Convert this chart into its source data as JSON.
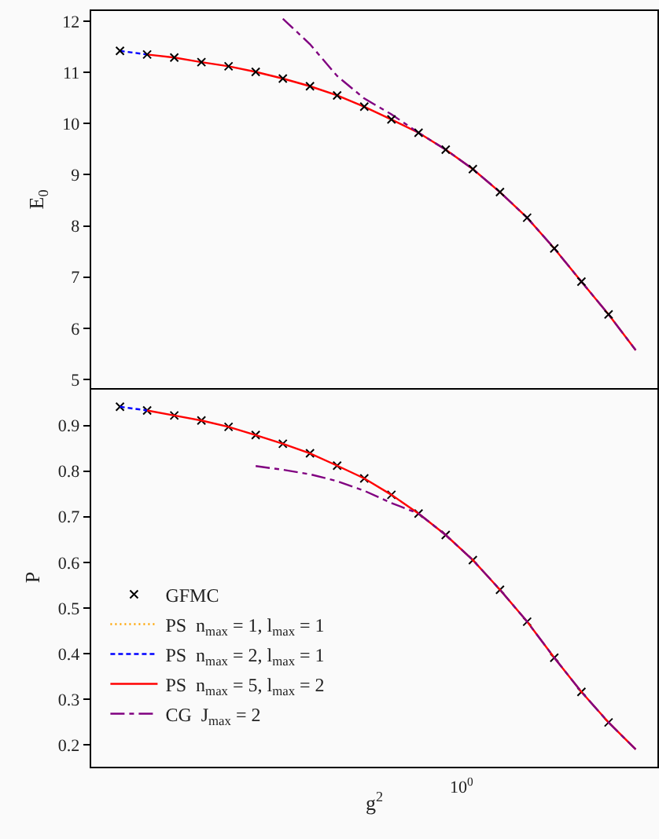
{
  "chart_data": [
    {
      "type": "line",
      "ylabel": "E$_{0}$",
      "ylim": [
        4.83,
        12.2
      ],
      "grid": false,
      "legend": false,
      "tick_labels": "y",
      "categories": [
        null,
        null,
        null,
        null,
        null,
        null,
        null,
        null,
        null,
        null,
        null,
        null,
        null,
        null,
        null,
        null,
        null,
        null,
        null,
        null
      ],
      "yticks": [
        5,
        6,
        7,
        8,
        9,
        10,
        11,
        12
      ],
      "series": [
        {
          "color": "#ffa500",
          "line_style": "dotted",
          "values": [
            null,
            null,
            null,
            null,
            null,
            null,
            null,
            null,
            null,
            null,
            null,
            null,
            null,
            null,
            null,
            null,
            null,
            null,
            null,
            null
          ]
        },
        {
          "color": "#0000ff",
          "line_style": "dashed",
          "values": [
            11.42,
            11.35,
            null,
            null,
            null,
            null,
            null,
            null,
            null,
            null,
            null,
            null,
            null,
            null,
            null,
            null,
            null,
            null,
            null,
            null
          ]
        },
        {
          "color": "#ff0000",
          "line_style": "solid",
          "values": [
            null,
            11.35,
            11.29,
            11.2,
            11.12,
            11.01,
            10.88,
            10.73,
            10.55,
            10.33,
            10.08,
            9.82,
            9.49,
            9.11,
            8.66,
            8.16,
            7.56,
            6.91,
            6.27,
            5.57
          ]
        },
        {
          "color": "#800080",
          "line_style": "dashdot",
          "values": [
            null,
            null,
            null,
            null,
            null,
            null,
            12.05,
            11.55,
            10.93,
            10.49,
            10.18,
            9.82,
            9.49,
            9.11,
            8.66,
            8.16,
            7.56,
            6.91,
            6.27,
            5.57
          ]
        },
        {
          "type": "scatter",
          "color": "#000000",
          "marker": "cross",
          "values": [
            11.42,
            11.35,
            11.29,
            11.2,
            11.12,
            11.01,
            10.88,
            10.73,
            10.55,
            10.33,
            10.08,
            9.82,
            9.49,
            9.11,
            8.66,
            8.16,
            7.56,
            6.91,
            6.27,
            null
          ]
        }
      ]
    },
    {
      "type": "line",
      "ylabel": "P",
      "xlabel": "g$^{2}$",
      "ylim": [
        0.152,
        0.982
      ],
      "grid": false,
      "legend": "bottom left",
      "tick_labels": "y",
      "annotations": [
        "10$^{0}$"
      ],
      "categories": [
        null,
        null,
        null,
        null,
        null,
        null,
        null,
        null,
        null,
        null,
        null,
        null,
        null,
        null,
        null,
        null,
        null,
        null,
        null,
        null
      ],
      "yticks": [
        0.2,
        0.3,
        0.4,
        0.5,
        0.6,
        0.7,
        0.8,
        0.9
      ],
      "series": [
        {
          "type": "scatter",
          "name": "GFMC",
          "color": "#000000",
          "marker": "cross",
          "values": [
            0.941,
            0.933,
            0.922,
            0.911,
            0.897,
            0.879,
            0.86,
            0.839,
            0.812,
            0.784,
            0.748,
            0.707,
            0.66,
            0.605,
            0.54,
            0.47,
            0.391,
            0.316,
            0.249,
            null
          ]
        },
        {
          "name": "PS  n$_{max}$ = 1, l$_{max}$ = 1",
          "color": "#ffa500",
          "line_style": "dotted",
          "values": [
            null,
            null,
            null,
            null,
            null,
            null,
            null,
            null,
            null,
            null,
            null,
            null,
            null,
            null,
            null,
            null,
            null,
            null,
            null,
            null
          ]
        },
        {
          "name": "PS  n$_{max}$ = 2, l$_{max}$ = 1",
          "color": "#0000ff",
          "line_style": "dashed",
          "values": [
            0.941,
            0.933,
            null,
            null,
            null,
            null,
            null,
            null,
            null,
            null,
            null,
            null,
            null,
            null,
            null,
            null,
            null,
            null,
            null,
            null
          ]
        },
        {
          "name": "PS  n$_{max}$ = 5, l$_{max}$ = 2",
          "color": "#ff0000",
          "line_style": "solid",
          "values": [
            null,
            0.933,
            0.922,
            0.911,
            0.897,
            0.879,
            0.86,
            0.839,
            0.812,
            0.784,
            0.748,
            0.707,
            0.66,
            0.605,
            0.54,
            0.47,
            0.391,
            0.316,
            0.249,
            0.19
          ]
        },
        {
          "name": "CG  J$_{max}$ = 2",
          "color": "#800080",
          "line_style": "dashdot",
          "values": [
            null,
            null,
            null,
            null,
            null,
            0.811,
            0.803,
            0.793,
            0.778,
            0.757,
            0.73,
            0.707,
            0.66,
            0.605,
            0.54,
            0.47,
            0.391,
            0.316,
            0.249,
            0.19
          ]
        }
      ]
    }
  ]
}
